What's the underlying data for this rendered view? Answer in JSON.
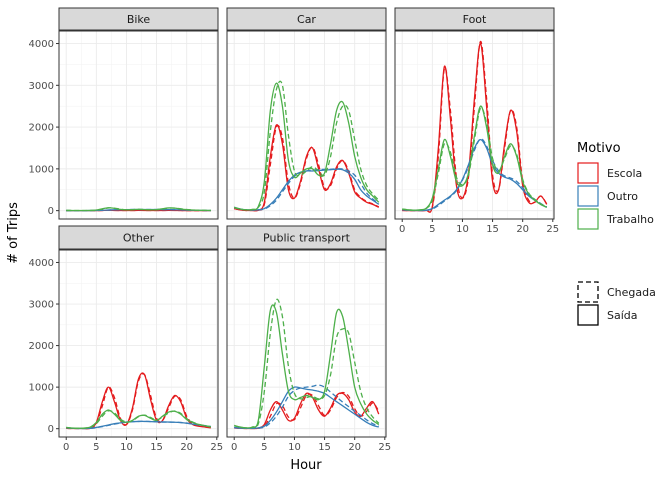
{
  "chart_data": {
    "type": "line",
    "xlabel": "Hour",
    "ylabel": "# of Trips",
    "xlim": [
      -1.2,
      25.2
    ],
    "ylim": [
      -200,
      4300
    ],
    "x_ticks": [
      0,
      5,
      10,
      15,
      20,
      25
    ],
    "y_ticks": [
      0,
      1000,
      2000,
      3000,
      4000
    ],
    "grid": true,
    "legend_position": "right",
    "legend": {
      "color_title": "Motivo",
      "colors": [
        {
          "name": "Escola",
          "color": "#e41a1c"
        },
        {
          "name": "Outro",
          "color": "#377eb8"
        },
        {
          "name": "Trabalho",
          "color": "#4daf4a"
        }
      ],
      "linetypes": [
        {
          "name": "Chegada",
          "dash": "dashed"
        },
        {
          "name": "Saída",
          "dash": "solid"
        }
      ]
    },
    "x": [
      0,
      1,
      2,
      3,
      4,
      5,
      6,
      7,
      8,
      9,
      10,
      11,
      12,
      13,
      14,
      15,
      16,
      17,
      18,
      19,
      20,
      21,
      22,
      23,
      24
    ],
    "panels": [
      {
        "label": "Bike",
        "series": [
          {
            "motivo": "Escola",
            "tipo": "Saída",
            "values": [
              0,
              0,
              0,
              0,
              0,
              2,
              5,
              8,
              5,
              3,
              3,
              4,
              6,
              5,
              4,
              3,
              4,
              6,
              5,
              3,
              2,
              1,
              1,
              0,
              0
            ]
          },
          {
            "motivo": "Escola",
            "tipo": "Chegada",
            "values": [
              0,
              0,
              0,
              0,
              0,
              1,
              4,
              8,
              6,
              3,
              3,
              4,
              6,
              6,
              4,
              3,
              4,
              6,
              6,
              3,
              2,
              1,
              1,
              0,
              0
            ]
          },
          {
            "motivo": "Outro",
            "tipo": "Saída",
            "values": [
              2,
              1,
              1,
              1,
              2,
              5,
              10,
              15,
              20,
              22,
              25,
              27,
              28,
              28,
              27,
              26,
              25,
              24,
              22,
              18,
              14,
              10,
              7,
              4,
              2
            ]
          },
          {
            "motivo": "Outro",
            "tipo": "Chegada",
            "values": [
              2,
              1,
              1,
              1,
              2,
              4,
              9,
              14,
              19,
              22,
              25,
              27,
              28,
              28,
              27,
              26,
              25,
              24,
              22,
              19,
              15,
              11,
              8,
              5,
              3
            ]
          },
          {
            "motivo": "Trabalho",
            "tipo": "Saída",
            "values": [
              5,
              4,
              3,
              3,
              5,
              15,
              45,
              70,
              55,
              30,
              20,
              25,
              30,
              25,
              20,
              25,
              45,
              65,
              60,
              40,
              25,
              15,
              10,
              7,
              5
            ]
          },
          {
            "motivo": "Trabalho",
            "tipo": "Chegada",
            "values": [
              5,
              4,
              3,
              3,
              4,
              10,
              35,
              65,
              60,
              35,
              22,
              24,
              30,
              26,
              22,
              24,
              40,
              60,
              62,
              45,
              28,
              17,
              11,
              8,
              5
            ]
          }
        ]
      },
      {
        "label": "Car",
        "series": [
          {
            "motivo": "Escola",
            "tipo": "Saída",
            "values": [
              50,
              20,
              5,
              5,
              10,
              200,
              1300,
              2050,
              1600,
              500,
              300,
              700,
              1300,
              1500,
              1000,
              500,
              650,
              1050,
              1200,
              900,
              450,
              300,
              200,
              150,
              80
            ]
          },
          {
            "motivo": "Escola",
            "tipo": "Chegada",
            "values": [
              50,
              20,
              5,
              5,
              8,
              150,
              1100,
              2000,
              1750,
              650,
              300,
              650,
              1250,
              1520,
              1100,
              550,
              600,
              1000,
              1200,
              950,
              500,
              320,
              220,
              160,
              90
            ]
          },
          {
            "motivo": "Outro",
            "tipo": "Saída",
            "values": [
              80,
              40,
              20,
              15,
              20,
              50,
              150,
              300,
              500,
              700,
              850,
              920,
              950,
              950,
              960,
              970,
              980,
              990,
              980,
              900,
              750,
              500,
              350,
              250,
              150
            ]
          },
          {
            "motivo": "Outro",
            "tipo": "Chegada",
            "values": [
              70,
              35,
              18,
              14,
              18,
              40,
              120,
              250,
              450,
              650,
              820,
              910,
              950,
              970,
              980,
              990,
              990,
              1000,
              1000,
              950,
              850,
              650,
              420,
              280,
              170
            ]
          },
          {
            "motivo": "Trabalho",
            "tipo": "Saída",
            "values": [
              80,
              40,
              20,
              30,
              100,
              700,
              2400,
              3050,
              2500,
              1200,
              800,
              900,
              1000,
              1000,
              850,
              900,
              1600,
              2400,
              2600,
              2100,
              1300,
              800,
              500,
              350,
              200
            ]
          },
          {
            "motivo": "Trabalho",
            "tipo": "Chegada",
            "values": [
              70,
              35,
              18,
              25,
              80,
              450,
              1900,
              2900,
              3000,
              1800,
              950,
              850,
              950,
              1050,
              950,
              850,
              1300,
              2100,
              2500,
              2400,
              1700,
              1000,
              600,
              400,
              250
            ]
          }
        ]
      },
      {
        "label": "Foot",
        "series": [
          {
            "motivo": "Escola",
            "tipo": "Saída",
            "values": [
              5,
              2,
              2,
              2,
              5,
              100,
              1500,
              3450,
              2200,
              600,
              300,
              900,
              2700,
              4000,
              2500,
              700,
              500,
              1600,
              2400,
              1900,
              600,
              200,
              200,
              350,
              150
            ]
          },
          {
            "motivo": "Escola",
            "tipo": "Chegada",
            "values": [
              5,
              2,
              2,
              2,
              4,
              80,
              1300,
              3400,
              2400,
              800,
              300,
              800,
              2500,
              4050,
              2700,
              850,
              500,
              1500,
              2400,
              2000,
              700,
              250,
              200,
              350,
              160
            ]
          },
          {
            "motivo": "Outro",
            "tipo": "Saída",
            "values": [
              20,
              10,
              5,
              5,
              10,
              50,
              150,
              250,
              350,
              500,
              750,
              1100,
              1500,
              1700,
              1500,
              1100,
              900,
              800,
              750,
              650,
              500,
              350,
              250,
              150,
              80
            ]
          },
          {
            "motivo": "Outro",
            "tipo": "Chegada",
            "values": [
              20,
              10,
              5,
              5,
              8,
              40,
              120,
              230,
              330,
              480,
              730,
              1050,
              1450,
              1720,
              1550,
              1200,
              950,
              830,
              780,
              700,
              550,
              380,
              270,
              170,
              90
            ]
          },
          {
            "motivo": "Trabalho",
            "tipo": "Saída",
            "values": [
              40,
              20,
              10,
              20,
              60,
              300,
              1000,
              1700,
              1300,
              700,
              600,
              900,
              1800,
              2500,
              2000,
              1100,
              900,
              1300,
              1600,
              1300,
              700,
              400,
              250,
              150,
              80
            ]
          },
          {
            "motivo": "Trabalho",
            "tipo": "Chegada",
            "values": [
              35,
              18,
              9,
              15,
              50,
              250,
              900,
              1600,
              1400,
              800,
              620,
              850,
              1700,
              2450,
              2100,
              1250,
              950,
              1250,
              1550,
              1350,
              750,
              420,
              270,
              160,
              90
            ]
          }
        ]
      },
      {
        "label": "Other",
        "series": [
          {
            "motivo": "Escola",
            "tipo": "Saída",
            "values": [
              10,
              5,
              5,
              5,
              10,
              150,
              650,
              1000,
              650,
              200,
              100,
              500,
              1200,
              1300,
              700,
              200,
              200,
              550,
              800,
              650,
              250,
              100,
              60,
              40,
              20
            ]
          },
          {
            "motivo": "Escola",
            "tipo": "Chegada",
            "values": [
              10,
              5,
              5,
              5,
              8,
              120,
              550,
              1000,
              750,
              250,
              100,
              450,
              1150,
              1300,
              800,
              250,
              200,
              500,
              780,
              700,
              300,
              120,
              70,
              45,
              25
            ]
          },
          {
            "motivo": "Outro",
            "tipo": "Saída",
            "values": [
              20,
              10,
              5,
              5,
              10,
              30,
              60,
              90,
              120,
              140,
              160,
              170,
              175,
              175,
              170,
              165,
              160,
              160,
              155,
              145,
              130,
              110,
              90,
              70,
              50
            ]
          },
          {
            "motivo": "Outro",
            "tipo": "Chegada",
            "values": [
              20,
              10,
              5,
              5,
              8,
              25,
              50,
              80,
              110,
              135,
              155,
              168,
              175,
              177,
              172,
              167,
              162,
              160,
              158,
              150,
              135,
              115,
              95,
              75,
              55
            ]
          },
          {
            "motivo": "Trabalho",
            "tipo": "Saída",
            "values": [
              30,
              15,
              10,
              15,
              40,
              150,
              350,
              450,
              350,
              200,
              150,
              200,
              300,
              320,
              250,
              200,
              300,
              400,
              420,
              350,
              220,
              150,
              100,
              70,
              40
            ]
          },
          {
            "motivo": "Trabalho",
            "tipo": "Chegada",
            "values": [
              28,
              14,
              9,
              12,
              35,
              120,
              300,
              430,
              380,
              230,
              160,
              190,
              290,
              325,
              270,
              210,
              280,
              380,
              425,
              370,
              240,
              160,
              105,
              75,
              45
            ]
          }
        ]
      },
      {
        "label": "Public transport",
        "series": [
          {
            "motivo": "Escola",
            "tipo": "Saída",
            "values": [
              20,
              10,
              5,
              5,
              15,
              100,
              450,
              650,
              450,
              200,
              250,
              600,
              850,
              750,
              450,
              300,
              500,
              800,
              850,
              700,
              400,
              300,
              500,
              650,
              350
            ]
          },
          {
            "motivo": "Escola",
            "tipo": "Chegada",
            "values": [
              20,
              10,
              5,
              5,
              10,
              60,
              300,
              600,
              550,
              280,
              220,
              500,
              800,
              800,
              550,
              320,
              450,
              750,
              870,
              780,
              480,
              300,
              420,
              620,
              420
            ]
          },
          {
            "motivo": "Outro",
            "tipo": "Saída",
            "values": [
              30,
              15,
              10,
              10,
              20,
              60,
              200,
              400,
              650,
              900,
              1000,
              980,
              950,
              930,
              900,
              850,
              750,
              650,
              550,
              450,
              350,
              250,
              150,
              80,
              40
            ]
          },
          {
            "motivo": "Outro",
            "tipo": "Chegada",
            "values": [
              25,
              12,
              8,
              8,
              15,
              40,
              140,
              300,
              520,
              780,
              920,
              980,
              1000,
              1020,
              1050,
              1000,
              880,
              760,
              640,
              530,
              420,
              320,
              210,
              120,
              60
            ]
          },
          {
            "motivo": "Trabalho",
            "tipo": "Saída",
            "values": [
              80,
              40,
              20,
              40,
              200,
              1500,
              2850,
              2800,
              1800,
              900,
              700,
              750,
              800,
              750,
              700,
              900,
              1800,
              2800,
              2700,
              1900,
              1000,
              600,
              350,
              200,
              100
            ]
          },
          {
            "motivo": "Trabalho",
            "tipo": "Chegada",
            "values": [
              70,
              35,
              18,
              30,
              120,
              900,
              2300,
              3100,
              2700,
              1500,
              850,
              720,
              750,
              780,
              720,
              800,
              1300,
              2200,
              2400,
              2300,
              1600,
              900,
              500,
              280,
              130
            ]
          }
        ]
      }
    ]
  }
}
